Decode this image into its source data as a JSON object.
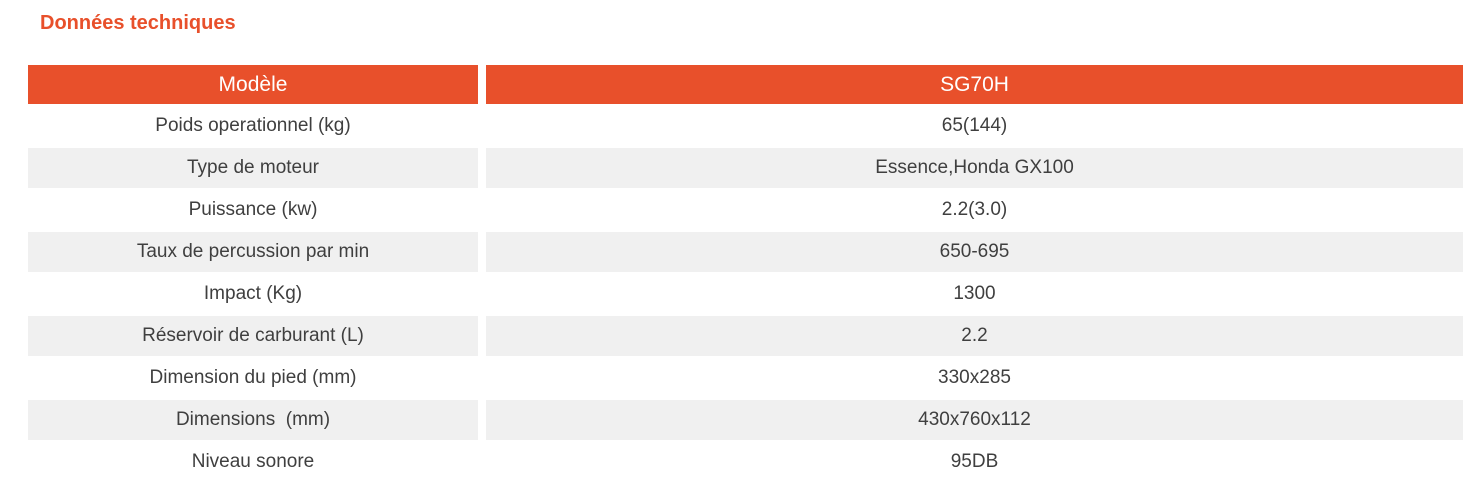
{
  "title": "Données techniques",
  "colors": {
    "accent_orange": "#E8502B",
    "header_text": "#FFFFFF",
    "row_alt_bg": "#F0F0F0",
    "body_text": "#3F3F3F",
    "page_bg": "#FFFFFF"
  },
  "table": {
    "header": {
      "model_label": "Modèle",
      "model_value": "SG70H"
    },
    "rows": [
      {
        "label": "Poids operationnel (kg)",
        "value": "65(144)"
      },
      {
        "label": "Type de moteur",
        "value": "Essence,Honda GX100"
      },
      {
        "label": "Puissance (kw)",
        "value": "2.2(3.0)"
      },
      {
        "label": "Taux de percussion par min",
        "value": "650-695"
      },
      {
        "label": "Impact (Kg)",
        "value": "1300"
      },
      {
        "label": "Réservoir de carburant (L)",
        "value": "2.2"
      },
      {
        "label": "Dimension du pied (mm)",
        "value": "330x285"
      },
      {
        "label": "Dimensions  (mm)",
        "value": "430x760x112"
      },
      {
        "label": "Niveau sonore",
        "value": "95DB"
      }
    ]
  }
}
